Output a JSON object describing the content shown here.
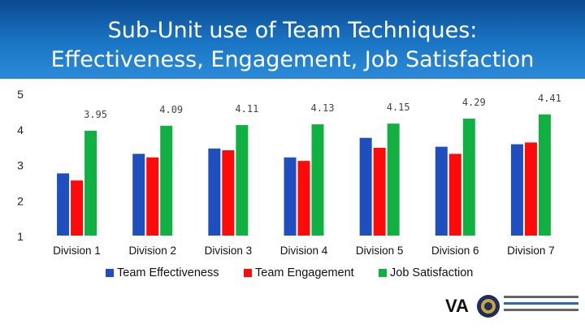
{
  "header": {
    "title_line1": "Sub-Unit use of Team Techniques:",
    "title_line2": "Effectiveness, Engagement, Job Satisfaction"
  },
  "chart_data": {
    "type": "bar",
    "title": "",
    "xlabel": "",
    "ylabel": "",
    "ylim": [
      1,
      5
    ],
    "yticks": [
      1,
      2,
      3,
      4,
      5
    ],
    "categories": [
      "Division 1",
      "Division 2",
      "Division 3",
      "Division 4",
      "Division 5",
      "Division 6",
      "Division 7"
    ],
    "series": [
      {
        "name": "Team Effectiveness",
        "color": "#1f4fbf",
        "values": [
          2.75,
          3.3,
          3.45,
          3.2,
          3.75,
          3.5,
          3.57
        ]
      },
      {
        "name": "Team Engagement",
        "color": "#ff0a0a",
        "values": [
          2.55,
          3.2,
          3.4,
          3.1,
          3.47,
          3.3,
          3.62
        ]
      },
      {
        "name": "Job Satisfaction",
        "color": "#10b043",
        "values": [
          3.95,
          4.09,
          4.11,
          4.13,
          4.15,
          4.29,
          4.41
        ],
        "labels": [
          "3.95",
          "4.09",
          "4.11",
          "4.13",
          "4.15",
          "4.29",
          "4.41"
        ]
      }
    ],
    "legend_position": "bottom",
    "grid": false
  }
}
